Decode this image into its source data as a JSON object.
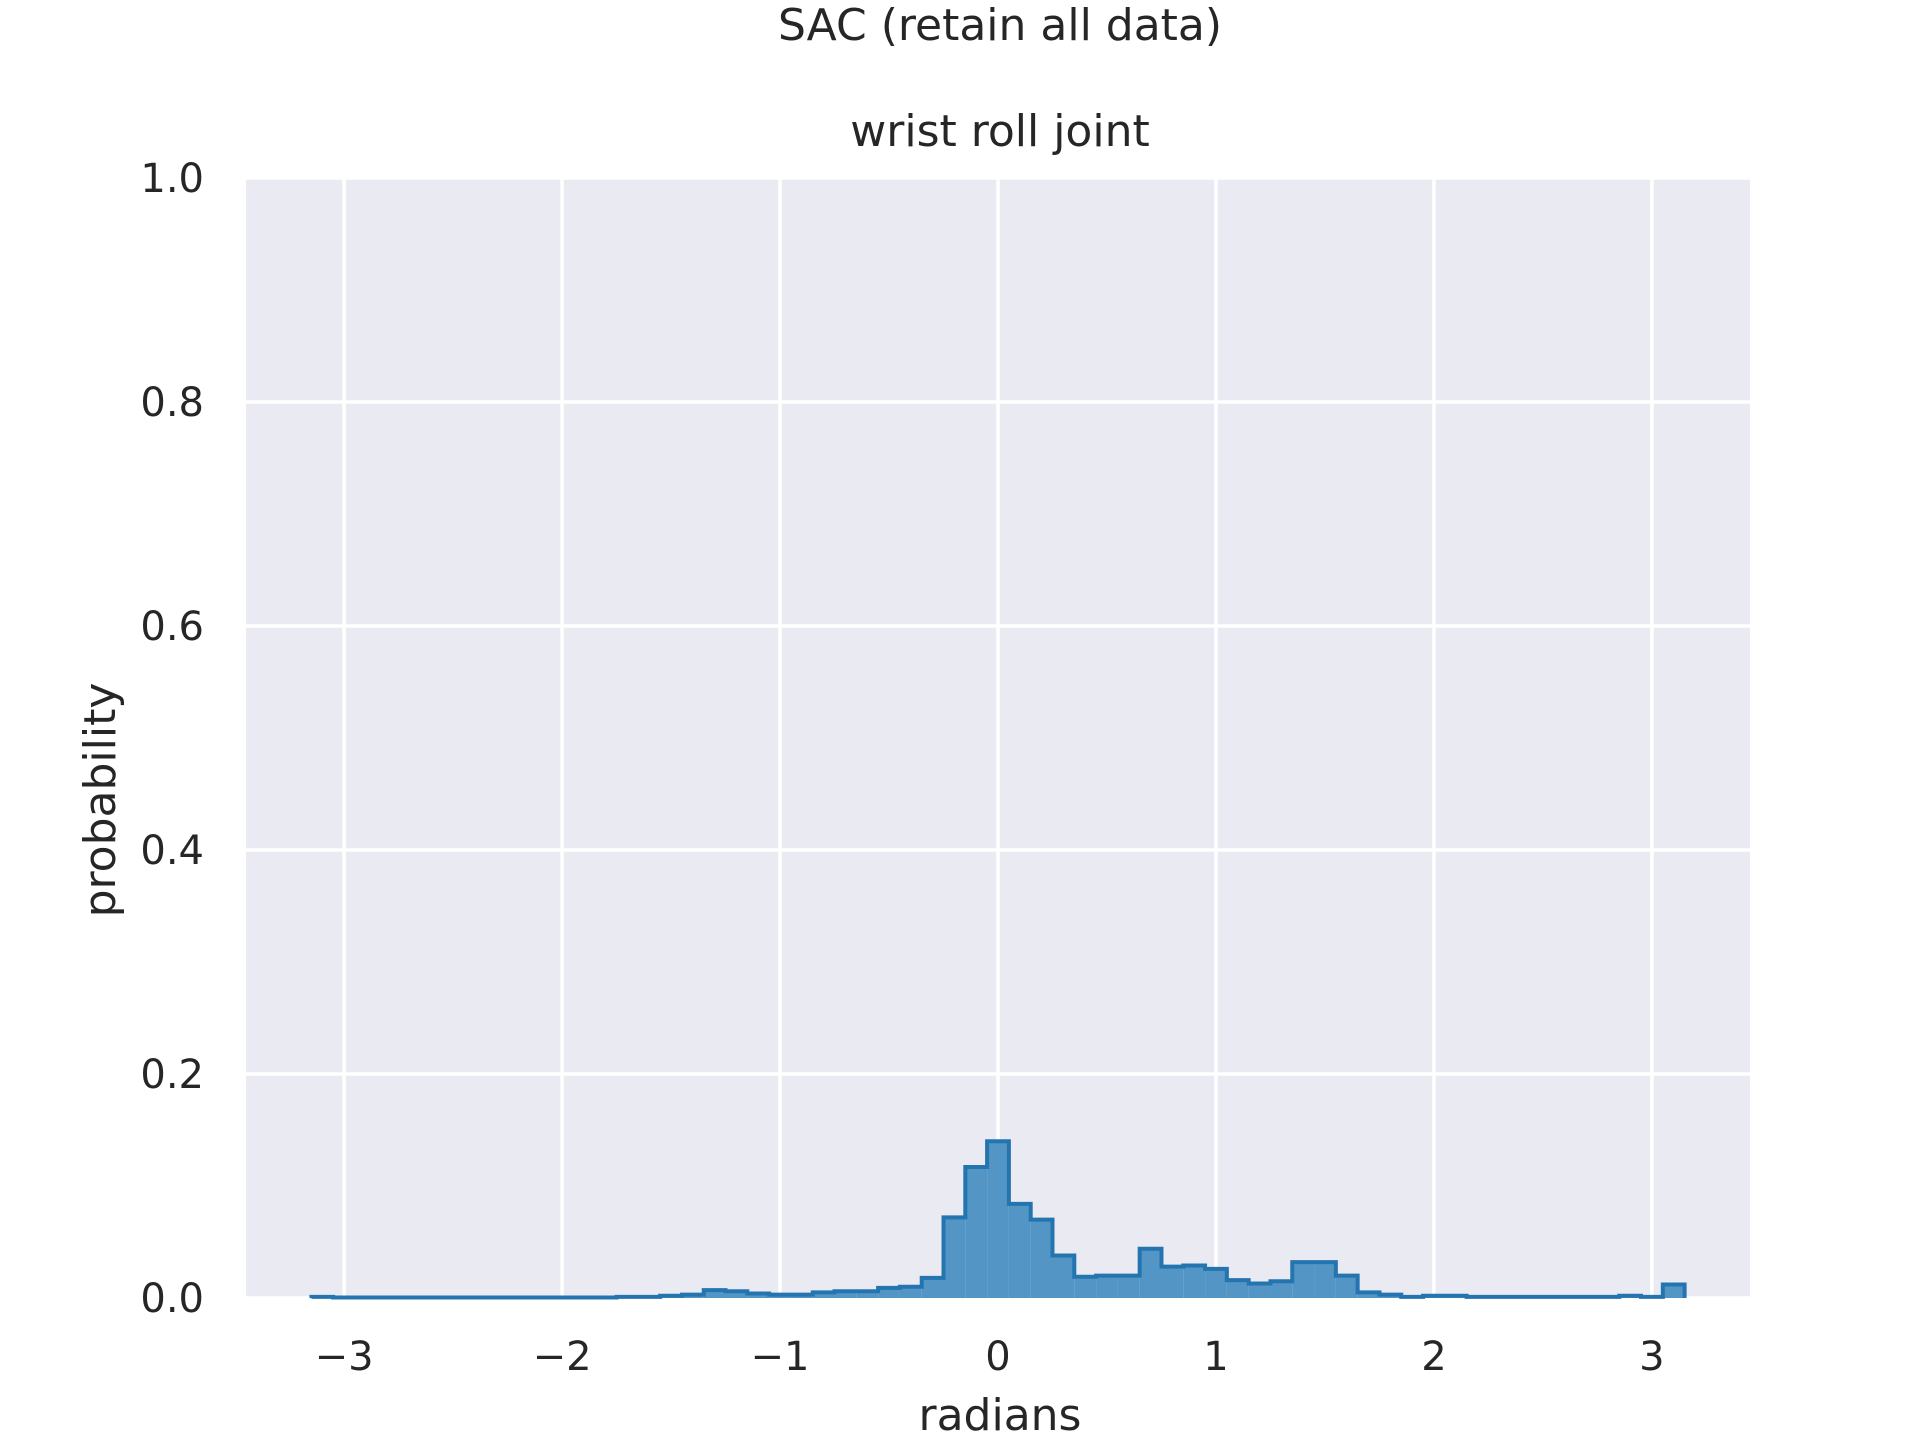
{
  "chart_data": {
    "type": "histogram",
    "suptitle": "SAC (retain all data)",
    "title": "wrist roll joint",
    "xlabel": "radians",
    "ylabel": "probability",
    "xlim": [
      -3.45,
      3.45
    ],
    "ylim": [
      0,
      1.0
    ],
    "xticks": [
      -3,
      -2,
      -1,
      0,
      1,
      2,
      3
    ],
    "xtick_labels": [
      "−3",
      "−2",
      "−1",
      "0",
      "1",
      "2",
      "3"
    ],
    "yticks": [
      0.0,
      0.2,
      0.4,
      0.6,
      0.8,
      1.0
    ],
    "ytick_labels": [
      "0.0",
      "0.2",
      "0.4",
      "0.6",
      "0.8",
      "1.0"
    ],
    "grid": true,
    "bin_edges": [
      -3.15,
      -3.05,
      -2.95,
      -2.85,
      -2.75,
      -2.65,
      -2.55,
      -2.45,
      -2.35,
      -2.25,
      -2.15,
      -2.05,
      -1.95,
      -1.85,
      -1.75,
      -1.65,
      -1.55,
      -1.45,
      -1.35,
      -1.25,
      -1.15,
      -1.05,
      -0.95,
      -0.85,
      -0.75,
      -0.65,
      -0.55,
      -0.45,
      -0.35,
      -0.25,
      -0.15,
      -0.05,
      0.05,
      0.15,
      0.25,
      0.35,
      0.45,
      0.55,
      0.65,
      0.75,
      0.85,
      0.95,
      1.05,
      1.15,
      1.25,
      1.35,
      1.45,
      1.55,
      1.65,
      1.75,
      1.85,
      1.95,
      2.05,
      2.15,
      2.25,
      2.35,
      2.45,
      2.55,
      2.65,
      2.75,
      2.85,
      2.95,
      3.05,
      3.15
    ],
    "values": [
      0.001,
      0.0005,
      0.0005,
      0.0005,
      0.0005,
      0.0005,
      0.0005,
      0.0005,
      0.0005,
      0.0005,
      0.0005,
      0.0005,
      0.0005,
      0.0005,
      0.001,
      0.001,
      0.002,
      0.003,
      0.007,
      0.006,
      0.004,
      0.003,
      0.003,
      0.005,
      0.006,
      0.006,
      0.009,
      0.01,
      0.018,
      0.072,
      0.117,
      0.14,
      0.084,
      0.07,
      0.038,
      0.019,
      0.02,
      0.02,
      0.044,
      0.028,
      0.029,
      0.026,
      0.016,
      0.013,
      0.015,
      0.032,
      0.032,
      0.02,
      0.005,
      0.003,
      0.001,
      0.002,
      0.002,
      0.001,
      0.001,
      0.001,
      0.001,
      0.001,
      0.001,
      0.001,
      0.002,
      0.001,
      0.012
    ],
    "colors": {
      "background": "#eaeaf2",
      "grid": "#ffffff",
      "fill": "#5395c5",
      "edge": "#2474b0"
    }
  }
}
